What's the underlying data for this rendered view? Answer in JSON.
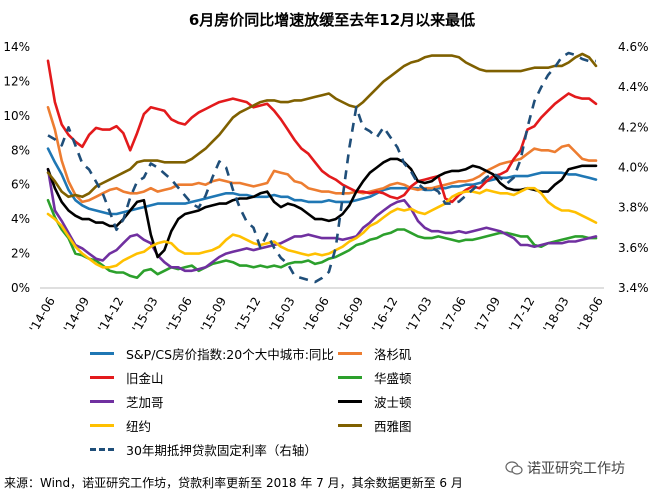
{
  "title": "6月房价同比增速放缓至去年12月以来最低",
  "source_note": "来源：Wind，诺亚研究工作坊，贷款利率更新至 2018 年 7 月，其余数据更新至 6 月",
  "watermark": "诺亚研究工作坊",
  "chart_data": {
    "type": "line",
    "title": "6月房价同比增速放缓至去年12月以来最低",
    "x_tick_labels": [
      "'14-06",
      "'14-09",
      "'14-12",
      "'15-03",
      "'15-06",
      "'15-09",
      "'15-12",
      "'16-03",
      "'16-06",
      "'16-09",
      "'16-12",
      "'17-03",
      "'17-06",
      "'17-09",
      "'17-12",
      "'18-03",
      "'18-06"
    ],
    "x_range": [
      "2014-06",
      "2018-06"
    ],
    "y_left": {
      "ticks": [
        "0%",
        "2%",
        "4%",
        "6%",
        "8%",
        "10%",
        "12%",
        "14%"
      ],
      "range": [
        0,
        14
      ]
    },
    "y_right": {
      "ticks": [
        "3.4%",
        "3.6%",
        "3.8%",
        "4.0%",
        "4.2%",
        "4.4%",
        "4.6%"
      ],
      "range": [
        3.4,
        4.6
      ]
    },
    "grid": false,
    "legend_position": "bottom",
    "series": [
      {
        "name": "S&P/CS房价指数:20个大中城市:同比",
        "color": "#1f77b4",
        "axis": "left",
        "dashed": false,
        "values": [
          8.1,
          7.3,
          6.6,
          5.7,
          5.1,
          4.8,
          4.6,
          4.5,
          4.4,
          4.3,
          4.3,
          4.4,
          4.5,
          4.6,
          4.7,
          4.8,
          4.9,
          4.9,
          4.9,
          4.9,
          4.9,
          5.0,
          5.1,
          5.2,
          5.3,
          5.4,
          5.5,
          5.5,
          5.4,
          5.4,
          5.3,
          5.3,
          5.3,
          5.4,
          5.3,
          5.3,
          5.1,
          5.1,
          5.0,
          5.0,
          5.0,
          5.1,
          5.0,
          5.0,
          5.0,
          5.1,
          5.2,
          5.3,
          5.5,
          5.7,
          5.8,
          5.8,
          5.8,
          5.8,
          5.8,
          5.7,
          5.7,
          5.8,
          5.8,
          5.9,
          5.9,
          6.0,
          6.0,
          6.1,
          6.2,
          6.3,
          6.4,
          6.4,
          6.5,
          6.5,
          6.5,
          6.6,
          6.7,
          6.7,
          6.7,
          6.7,
          6.6,
          6.6,
          6.5,
          6.4,
          6.3
        ]
      },
      {
        "name": "洛杉矶",
        "color": "#ed7d31",
        "axis": "left",
        "dashed": false,
        "values": [
          10.5,
          9.2,
          7.4,
          6.2,
          5.4,
          5.0,
          5.1,
          5.3,
          5.5,
          5.7,
          5.8,
          5.6,
          5.5,
          5.5,
          5.6,
          5.8,
          5.6,
          5.7,
          5.8,
          6.0,
          6.0,
          6.0,
          6.1,
          6.0,
          6.2,
          6.3,
          6.2,
          6.1,
          6.1,
          6.0,
          5.9,
          6.0,
          6.1,
          6.8,
          6.7,
          6.6,
          6.2,
          6.1,
          5.8,
          5.7,
          5.6,
          5.6,
          5.5,
          5.5,
          5.5,
          5.6,
          5.5,
          5.6,
          5.7,
          5.8,
          6.0,
          6.1,
          6.0,
          5.8,
          5.7,
          5.8,
          5.8,
          5.9,
          6.0,
          6.1,
          6.2,
          6.2,
          6.3,
          6.5,
          6.8,
          7.0,
          7.2,
          7.3,
          7.4,
          7.5,
          7.8,
          8.1,
          8.0,
          8.0,
          7.9,
          8.2,
          8.3,
          7.9,
          7.5,
          7.4,
          7.4
        ]
      },
      {
        "name": "旧金山",
        "color": "#e31a1c",
        "axis": "left",
        "dashed": false,
        "values": [
          13.2,
          10.8,
          9.5,
          8.9,
          8.5,
          8.2,
          8.9,
          9.3,
          9.2,
          9.2,
          9.4,
          9.0,
          8.0,
          9.0,
          10.1,
          10.5,
          10.4,
          10.3,
          9.8,
          9.6,
          9.5,
          9.9,
          10.2,
          10.4,
          10.6,
          10.8,
          10.9,
          11.0,
          10.9,
          10.8,
          10.5,
          10.6,
          10.7,
          10.3,
          9.8,
          9.2,
          8.6,
          8.1,
          7.8,
          7.3,
          6.8,
          6.5,
          6.3,
          6.0,
          5.8,
          5.6,
          5.6,
          5.5,
          5.6,
          5.5,
          5.3,
          5.2,
          5.4,
          5.9,
          6.2,
          6.3,
          6.4,
          6.5,
          5.2,
          5.0,
          5.4,
          5.7,
          5.9,
          5.8,
          6.2,
          6.5,
          6.6,
          6.8,
          7.5,
          8.0,
          9.2,
          9.4,
          9.9,
          10.3,
          10.7,
          11.0,
          11.3,
          11.1,
          11.0,
          11.0,
          10.7
        ]
      },
      {
        "name": "华盛顿",
        "color": "#2ca02c",
        "axis": "left",
        "dashed": false,
        "values": [
          5.1,
          4.1,
          3.4,
          2.9,
          2.0,
          1.9,
          1.7,
          1.6,
          1.3,
          1.0,
          0.9,
          0.9,
          0.7,
          0.6,
          1.0,
          1.1,
          0.8,
          1.0,
          1.2,
          1.1,
          1.2,
          1.3,
          1.0,
          1.2,
          1.4,
          1.5,
          1.6,
          1.5,
          1.3,
          1.3,
          1.2,
          1.3,
          1.2,
          1.3,
          1.2,
          1.4,
          1.5,
          1.5,
          1.6,
          1.4,
          1.5,
          1.7,
          1.8,
          2.0,
          2.2,
          2.5,
          2.6,
          2.8,
          2.9,
          3.1,
          3.2,
          3.4,
          3.4,
          3.2,
          3.0,
          2.9,
          2.9,
          3.0,
          2.9,
          2.8,
          2.7,
          2.8,
          2.8,
          2.9,
          3.0,
          3.1,
          3.2,
          3.2,
          3.1,
          3.0,
          3.0,
          2.5,
          2.4,
          2.6,
          2.7,
          2.8,
          2.9,
          3.0,
          3.0,
          2.9,
          2.9
        ]
      },
      {
        "name": "芝加哥",
        "color": "#7030a0",
        "axis": "left",
        "dashed": false,
        "values": [
          6.9,
          4.5,
          3.9,
          3.2,
          2.5,
          2.3,
          2.0,
          1.7,
          1.6,
          2.0,
          2.2,
          2.6,
          3.0,
          3.1,
          2.8,
          2.6,
          1.9,
          1.5,
          1.2,
          1.2,
          1.0,
          1.0,
          1.1,
          1.2,
          1.5,
          1.8,
          2.0,
          2.1,
          2.2,
          2.3,
          2.2,
          2.3,
          2.4,
          2.5,
          2.6,
          2.8,
          3.0,
          3.0,
          3.1,
          3.0,
          2.9,
          2.9,
          2.9,
          2.8,
          2.9,
          3.0,
          3.5,
          3.8,
          4.2,
          4.5,
          4.8,
          5.0,
          5.1,
          4.6,
          3.9,
          3.5,
          3.3,
          3.3,
          3.2,
          3.2,
          3.3,
          3.2,
          3.3,
          3.4,
          3.5,
          3.4,
          3.3,
          3.1,
          2.9,
          2.5,
          2.5,
          2.4,
          2.5,
          2.6,
          2.6,
          2.6,
          2.7,
          2.7,
          2.8,
          2.9,
          3.0
        ]
      },
      {
        "name": "波士顿",
        "color": "#000000",
        "axis": "left",
        "dashed": false,
        "values": [
          6.9,
          5.8,
          5.0,
          4.5,
          4.2,
          4.0,
          4.0,
          3.8,
          3.8,
          3.6,
          3.6,
          4.0,
          4.5,
          5.0,
          5.1,
          3.1,
          1.8,
          2.2,
          3.3,
          4.0,
          4.3,
          4.4,
          4.5,
          4.7,
          4.8,
          4.9,
          4.9,
          5.1,
          5.2,
          5.2,
          5.3,
          5.5,
          5.6,
          5.0,
          4.7,
          4.9,
          4.8,
          4.6,
          4.3,
          4.0,
          4.0,
          3.9,
          4.0,
          4.3,
          4.8,
          5.6,
          6.2,
          6.7,
          7.0,
          7.3,
          7.5,
          7.5,
          7.3,
          6.9,
          6.2,
          6.1,
          6.2,
          6.5,
          6.7,
          6.8,
          6.8,
          6.9,
          7.1,
          7.0,
          6.8,
          6.6,
          6.1,
          5.8,
          5.7,
          5.7,
          5.8,
          5.7,
          5.6,
          5.6,
          6.0,
          6.3,
          6.9,
          7.0,
          7.1,
          7.1,
          7.1
        ]
      },
      {
        "name": "纽约",
        "color": "#ffc000",
        "axis": "left",
        "dashed": false,
        "values": [
          4.3,
          4.0,
          3.6,
          3.0,
          2.4,
          2.0,
          1.7,
          1.4,
          1.2,
          1.2,
          1.3,
          1.6,
          1.8,
          2.0,
          2.1,
          2.4,
          2.6,
          2.7,
          2.6,
          2.2,
          2.0,
          2.0,
          2.0,
          2.1,
          2.2,
          2.4,
          2.8,
          3.1,
          3.0,
          2.8,
          2.6,
          2.5,
          2.6,
          2.7,
          2.4,
          2.2,
          2.1,
          2.0,
          1.9,
          2.0,
          1.9,
          2.0,
          2.2,
          2.4,
          2.7,
          2.9,
          3.2,
          3.6,
          3.8,
          4.1,
          4.4,
          4.6,
          4.5,
          4.6,
          4.4,
          4.3,
          4.5,
          4.7,
          4.9,
          5.3,
          5.5,
          5.6,
          5.6,
          5.5,
          5.7,
          5.6,
          5.5,
          5.5,
          5.4,
          5.6,
          5.8,
          5.8,
          5.5,
          5.0,
          4.7,
          4.5,
          4.5,
          4.4,
          4.2,
          4.0,
          3.8
        ]
      },
      {
        "name": "西雅图",
        "color": "#7f6000",
        "axis": "left",
        "dashed": false,
        "values": [
          6.7,
          6.2,
          5.6,
          5.3,
          5.4,
          5.3,
          5.5,
          5.9,
          6.1,
          6.3,
          6.5,
          6.7,
          6.9,
          7.3,
          7.4,
          7.4,
          7.4,
          7.3,
          7.3,
          7.3,
          7.3,
          7.5,
          7.8,
          8.1,
          8.5,
          8.9,
          9.4,
          9.9,
          10.2,
          10.4,
          10.6,
          10.8,
          10.9,
          10.9,
          10.8,
          10.8,
          10.9,
          10.9,
          11.0,
          11.1,
          11.2,
          11.3,
          11.0,
          10.8,
          10.6,
          10.5,
          10.8,
          11.2,
          11.6,
          12.0,
          12.3,
          12.6,
          12.9,
          13.1,
          13.2,
          13.4,
          13.5,
          13.5,
          13.5,
          13.5,
          13.4,
          13.1,
          12.9,
          12.7,
          12.6,
          12.6,
          12.6,
          12.6,
          12.6,
          12.6,
          12.7,
          12.8,
          12.8,
          12.8,
          12.9,
          12.9,
          13.1,
          13.4,
          13.6,
          13.4,
          12.9
        ]
      },
      {
        "name": "30年期抵押贷款固定利率（右轴）",
        "color": "#1f4e79",
        "axis": "right",
        "dashed": true,
        "values": [
          4.16,
          4.14,
          4.11,
          4.2,
          4.11,
          4.02,
          3.99,
          3.93,
          3.87,
          3.78,
          3.69,
          3.74,
          3.85,
          3.93,
          3.95,
          4.02,
          4.0,
          3.97,
          3.94,
          3.9,
          3.86,
          3.82,
          3.8,
          3.86,
          3.95,
          4.03,
          4.0,
          3.89,
          3.8,
          3.73,
          3.7,
          3.6,
          3.67,
          3.6,
          3.55,
          3.52,
          3.46,
          3.45,
          3.44,
          3.43,
          3.45,
          3.48,
          3.6,
          3.85,
          4.1,
          4.3,
          4.2,
          4.18,
          4.15,
          4.2,
          4.15,
          4.1,
          4.02,
          3.98,
          3.92,
          3.89,
          3.9,
          3.88,
          3.82,
          3.82,
          3.83,
          3.86,
          3.89,
          3.92,
          3.95,
          3.97,
          3.95,
          3.92,
          3.95,
          4.04,
          4.2,
          4.33,
          4.4,
          4.46,
          4.5,
          4.55,
          4.57,
          4.56,
          4.54,
          4.53,
          4.53
        ]
      }
    ]
  }
}
